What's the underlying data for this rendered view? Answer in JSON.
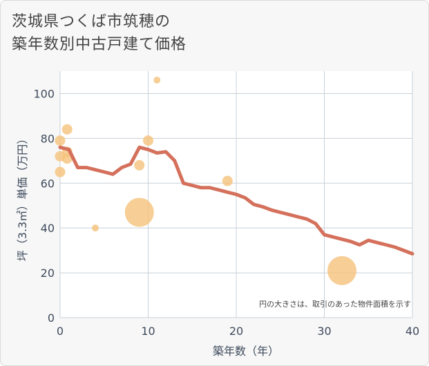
{
  "title_line1": "茨城県つくば市筑穂の",
  "title_line2": "築年数別中古戸建て価格",
  "chart_data": {
    "type": "scatter+line",
    "xlabel": "築年数（年）",
    "ylabel": "坪（3.3㎡）単価（万円）",
    "xlim": [
      0,
      40
    ],
    "ylim": [
      0,
      110
    ],
    "xticks": [
      0,
      10,
      20,
      30,
      40
    ],
    "yticks": [
      0,
      20,
      40,
      60,
      80,
      100
    ],
    "note": "円の大きさは、取引のあった物件面積を示す",
    "trend_line": {
      "x": [
        0,
        1,
        2,
        3,
        4,
        5,
        6,
        7,
        8,
        9,
        10,
        11,
        12,
        13,
        14,
        15,
        16,
        17,
        18,
        19,
        20,
        21,
        22,
        23,
        24,
        25,
        26,
        27,
        28,
        29,
        30,
        31,
        32,
        33,
        34,
        35,
        36,
        37,
        38,
        39,
        40
      ],
      "y": [
        76,
        75,
        67,
        67,
        66,
        65,
        64,
        67,
        68.5,
        76,
        75,
        73.5,
        74,
        70,
        60,
        59,
        58,
        58,
        57,
        56,
        55,
        53.5,
        50.5,
        49.5,
        48,
        47,
        46,
        45,
        44,
        42,
        37,
        36,
        35,
        34,
        32.5,
        34.5,
        33.5,
        32.5,
        31.5,
        30,
        28.5
      ]
    },
    "points": [
      {
        "x": 0,
        "y": 79,
        "size": "small"
      },
      {
        "x": 0,
        "y": 72,
        "size": "small"
      },
      {
        "x": 0,
        "y": 65,
        "size": "small"
      },
      {
        "x": 0.8,
        "y": 84,
        "size": "small"
      },
      {
        "x": 0.8,
        "y": 74,
        "size": "small"
      },
      {
        "x": 0.8,
        "y": 71,
        "size": "small"
      },
      {
        "x": 4,
        "y": 40,
        "size": "tiny"
      },
      {
        "x": 9,
        "y": 47,
        "size": "large"
      },
      {
        "x": 9,
        "y": 68,
        "size": "small"
      },
      {
        "x": 10,
        "y": 79,
        "size": "small"
      },
      {
        "x": 11,
        "y": 106,
        "size": "tiny"
      },
      {
        "x": 19,
        "y": 61,
        "size": "small"
      },
      {
        "x": 32,
        "y": 21,
        "size": "large"
      }
    ],
    "colors": {
      "line": "#d4705b",
      "bubble": "#f5c27a",
      "grid": "#c8d0d8"
    }
  }
}
